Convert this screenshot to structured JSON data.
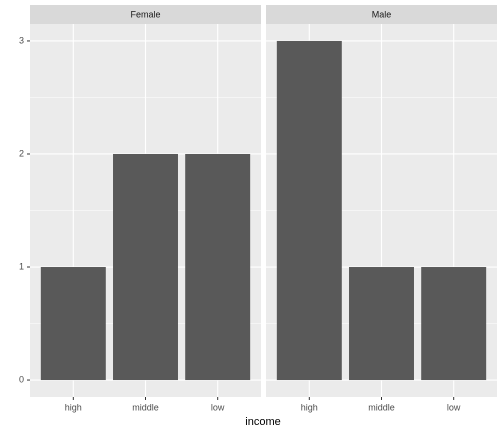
{
  "chart_data": {
    "type": "bar",
    "xlabel": "income",
    "color": "#595959",
    "grid": true,
    "ylim": [
      -0.15,
      3.15
    ],
    "yticks": [
      0,
      1,
      2,
      3
    ],
    "facets": [
      {
        "title": "Female",
        "categories": [
          "high",
          "middle",
          "low"
        ],
        "values": [
          1,
          2,
          2
        ]
      },
      {
        "title": "Male",
        "categories": [
          "high",
          "middle",
          "low"
        ],
        "values": [
          3,
          1,
          1
        ]
      }
    ]
  }
}
